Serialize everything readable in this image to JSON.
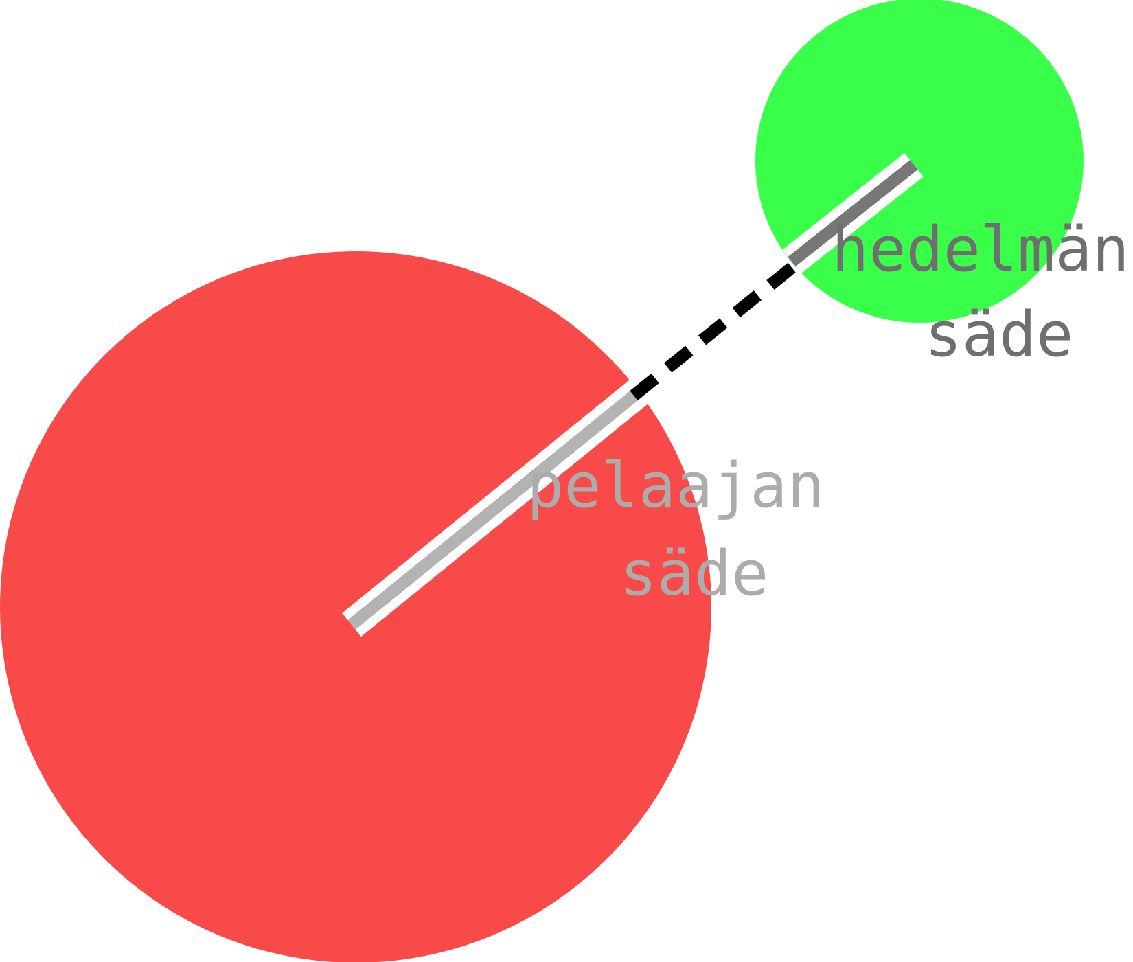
{
  "colors": {
    "background": "#ffffff",
    "player_circle": "#f94a4a",
    "fruit_circle": "#39ff4a",
    "player_radius_line": "#b3b3b3",
    "fruit_radius_line": "#777777",
    "outline": "#ffffff",
    "gap_dashes": "#000000",
    "player_label": "#acacac",
    "fruit_label": "#6f6f6f"
  },
  "labels": {
    "player": {
      "line1": "pelaajan",
      "line2": "säde"
    },
    "fruit": {
      "line1": "hedelmän",
      "line2": "säde"
    }
  }
}
